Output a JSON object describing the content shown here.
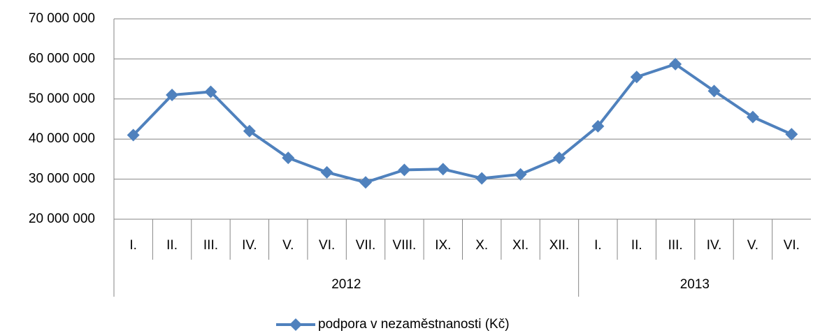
{
  "chart_data": {
    "type": "line",
    "category_groups": [
      {
        "label": "2012",
        "categories": [
          "I.",
          "II.",
          "III.",
          "IV.",
          "V.",
          "VI.",
          "VII.",
          "VIII.",
          "IX.",
          "X.",
          "XI.",
          "XII."
        ]
      },
      {
        "label": "2013",
        "categories": [
          "I.",
          "II.",
          "III.",
          "IV.",
          "V.",
          "VI."
        ]
      }
    ],
    "series": [
      {
        "name": "podpora v nezaměstnanosti (Kč)",
        "color": "#4f81bd",
        "values": [
          41000000,
          51000000,
          51800000,
          42000000,
          35300000,
          31700000,
          29200000,
          32300000,
          32500000,
          30200000,
          31200000,
          35300000,
          43200000,
          55500000,
          58700000,
          52000000,
          45500000,
          41200000
        ]
      }
    ],
    "ylim": [
      20000000,
      70000000
    ],
    "yticks": [
      {
        "value": 20000000,
        "label": "20 000 000"
      },
      {
        "value": 30000000,
        "label": "30 000 000"
      },
      {
        "value": 40000000,
        "label": "40 000 000"
      },
      {
        "value": 50000000,
        "label": "50 000 000"
      },
      {
        "value": 60000000,
        "label": "60 000 000"
      },
      {
        "value": 70000000,
        "label": "70 000 000"
      }
    ],
    "grid": true,
    "legend": "bottom"
  }
}
